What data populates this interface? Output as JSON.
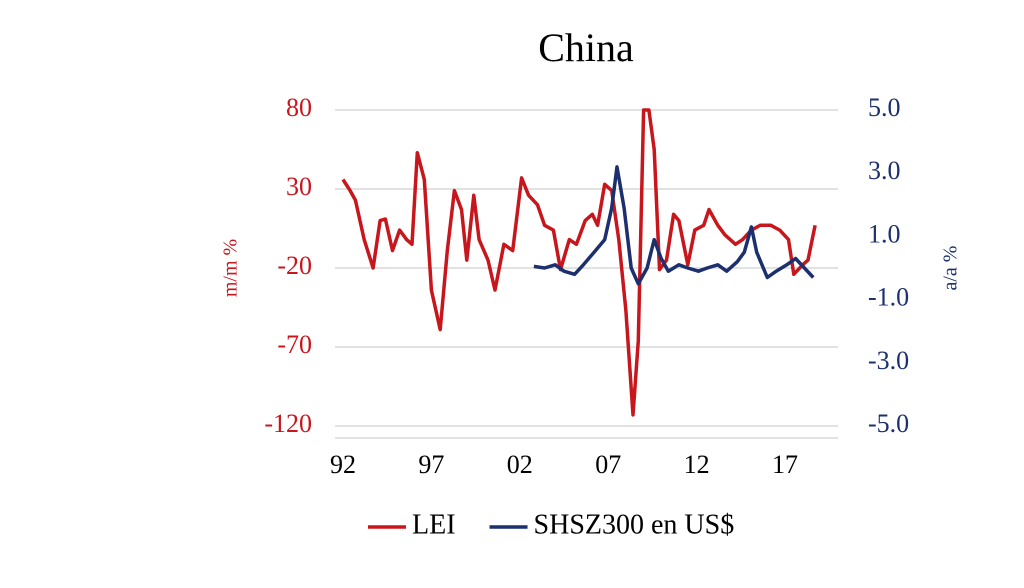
{
  "chart_data": {
    "type": "line",
    "title": "China",
    "y_label": "m/m %",
    "y2_label": "a/a %",
    "xlim": [
      1992,
      2019.5
    ],
    "xticks": [
      {
        "value": 1992,
        "label": "92"
      },
      {
        "value": 1997,
        "label": "97"
      },
      {
        "value": 2002,
        "label": "02"
      },
      {
        "value": 2007,
        "label": "07"
      },
      {
        "value": 2012,
        "label": "12"
      },
      {
        "value": 2017,
        "label": "17"
      }
    ],
    "ylim": [
      -120,
      80
    ],
    "yticks": [
      -120,
      -70,
      -20,
      30,
      80
    ],
    "y2lim": [
      -5,
      5
    ],
    "y2ticks": [
      {
        "value": -5,
        "label": "-5.0"
      },
      {
        "value": -3,
        "label": "-3.0"
      },
      {
        "value": -1,
        "label": "-1.0"
      },
      {
        "value": 1,
        "label": "1.0"
      },
      {
        "value": 3,
        "label": "3.0"
      },
      {
        "value": 5,
        "label": "5.0"
      }
    ],
    "grid": true,
    "legend": "bottom",
    "series": [
      {
        "name": "LEI",
        "color": "#c8161d",
        "axis": "y",
        "x": [
          1992,
          1992.4,
          1992.7,
          1993.2,
          1993.7,
          1994.1,
          1994.4,
          1994.8,
          1995.2,
          1995.6,
          1995.9,
          1996.2,
          1996.6,
          1997.0,
          1997.5,
          1997.9,
          1998.3,
          1998.7,
          1999.0,
          1999.4,
          1999.7,
          2000.2,
          2000.6,
          2001.1,
          2001.6,
          2002.1,
          2002.5,
          2003.0,
          2003.4,
          2003.9,
          2004.3,
          2004.8,
          2005.2,
          2005.7,
          2006.1,
          2006.4,
          2006.8,
          2007.2,
          2007.6,
          2008.0,
          2008.4,
          2008.7,
          2009.0,
          2009.3,
          2009.6,
          2009.9,
          2010.3,
          2010.7,
          2011.0,
          2011.5,
          2011.9,
          2012.4,
          2012.7,
          2013.2,
          2013.6,
          2014.2,
          2014.6,
          2015.1,
          2015.6,
          2016.2,
          2016.7,
          2017.2,
          2017.5,
          2018.0,
          2018.3,
          2018.7
        ],
        "values": [
          36,
          29,
          23,
          -2,
          -20,
          10,
          11,
          -9,
          4,
          -2,
          -5,
          53,
          36,
          -34,
          -59,
          -9,
          29,
          17,
          -15,
          26,
          -2,
          -15,
          -34,
          -5,
          -9,
          37,
          26,
          20,
          7,
          4,
          -21,
          -2,
          -5,
          10,
          14,
          7,
          33,
          29,
          -2,
          -47,
          -113,
          -66,
          80,
          80,
          55,
          -21,
          -15,
          14,
          10,
          -18,
          4,
          7,
          17,
          7,
          1,
          -5,
          -2,
          4,
          7,
          7,
          4,
          -2,
          -24,
          -18,
          -15,
          7
        ]
      },
      {
        "name": "SHSZ300 en US$",
        "color": "#1c2f6e",
        "axis": "y2",
        "x": [
          2002.8,
          2003.4,
          2004.0,
          2004.5,
          2005.1,
          2005.6,
          2006.2,
          2006.8,
          2007.2,
          2007.5,
          2007.9,
          2008.3,
          2008.7,
          2009.2,
          2009.6,
          2010.0,
          2010.4,
          2011.0,
          2011.5,
          2012.1,
          2012.6,
          2013.2,
          2013.7,
          2014.3,
          2014.7,
          2015.1,
          2015.4,
          2016.0,
          2016.5,
          2017.1,
          2017.6,
          2018.1,
          2018.6
        ],
        "values": [
          0.05,
          0,
          0.1,
          -0.1,
          -0.2,
          0.1,
          0.5,
          0.9,
          1.9,
          3.2,
          1.9,
          0,
          -0.5,
          0,
          0.9,
          0.3,
          -0.1,
          0.1,
          0,
          -0.1,
          0,
          0.1,
          -0.1,
          0.2,
          0.5,
          1.3,
          0.5,
          -0.3,
          -0.1,
          0.1,
          0.3,
          0,
          -0.3
        ]
      }
    ]
  }
}
